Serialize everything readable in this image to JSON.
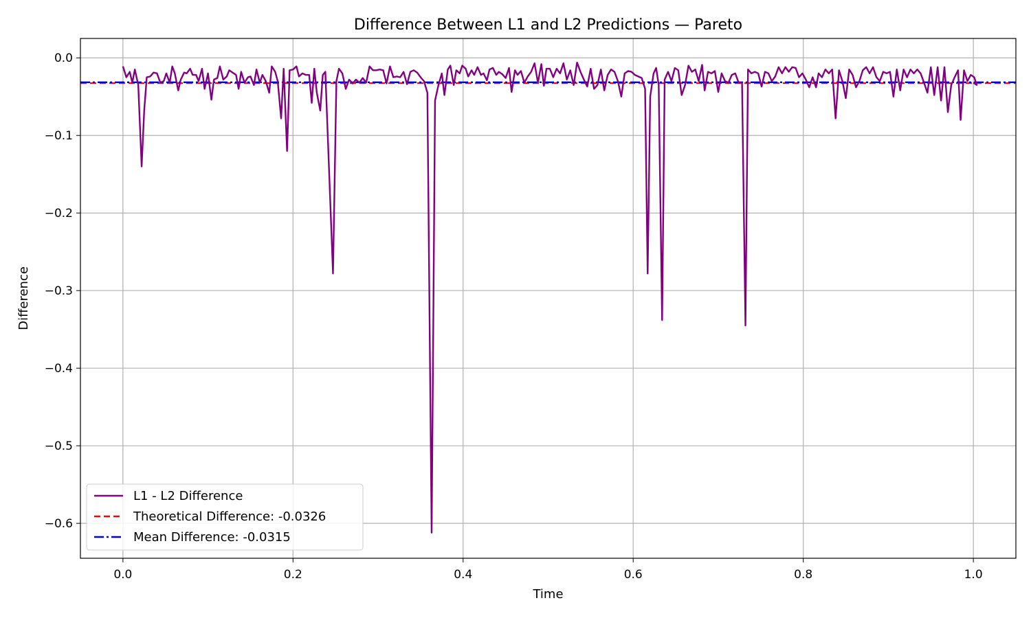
{
  "chart_data": {
    "type": "line",
    "title": "Difference Between L1 and L2 Predictions — Pareto",
    "xlabel": "Time",
    "ylabel": "Difference",
    "xlim": [
      -0.05,
      1.05
    ],
    "ylim": [
      -0.645,
      0.025
    ],
    "x_ticks": [
      0.0,
      0.2,
      0.4,
      0.6,
      0.8,
      1.0
    ],
    "x_tick_labels": [
      "0.0",
      "0.2",
      "0.4",
      "0.6",
      "0.8",
      "1.0"
    ],
    "y_ticks": [
      0.0,
      -0.1,
      -0.2,
      -0.3,
      -0.4,
      -0.5,
      -0.6
    ],
    "y_tick_labels": [
      "0.0",
      "−0.1",
      "−0.2",
      "−0.3",
      "−0.4",
      "−0.5",
      "−0.6"
    ],
    "grid": true,
    "legend_position": "lower-left",
    "series": [
      {
        "name": "L1 - L2 Difference",
        "color": "#800080",
        "style": "solid",
        "points": [
          [
            0.0,
            -0.011
          ],
          [
            0.004,
            -0.025
          ],
          [
            0.008,
            -0.018
          ],
          [
            0.011,
            -0.032
          ],
          [
            0.014,
            -0.015
          ],
          [
            0.018,
            -0.035
          ],
          [
            0.022,
            -0.14
          ],
          [
            0.025,
            -0.068
          ],
          [
            0.028,
            -0.025
          ],
          [
            0.032,
            -0.024
          ],
          [
            0.036,
            -0.019
          ],
          [
            0.04,
            -0.02
          ],
          [
            0.044,
            -0.032
          ],
          [
            0.048,
            -0.03
          ],
          [
            0.051,
            -0.02
          ],
          [
            0.055,
            -0.032
          ],
          [
            0.058,
            -0.011
          ],
          [
            0.061,
            -0.02
          ],
          [
            0.065,
            -0.042
          ],
          [
            0.068,
            -0.028
          ],
          [
            0.072,
            -0.019
          ],
          [
            0.075,
            -0.02
          ],
          [
            0.079,
            -0.014
          ],
          [
            0.082,
            -0.022
          ],
          [
            0.086,
            -0.022
          ],
          [
            0.089,
            -0.03
          ],
          [
            0.093,
            -0.014
          ],
          [
            0.096,
            -0.04
          ],
          [
            0.1,
            -0.02
          ],
          [
            0.104,
            -0.054
          ],
          [
            0.107,
            -0.028
          ],
          [
            0.111,
            -0.026
          ],
          [
            0.114,
            -0.011
          ],
          [
            0.118,
            -0.028
          ],
          [
            0.122,
            -0.024
          ],
          [
            0.125,
            -0.016
          ],
          [
            0.129,
            -0.019
          ],
          [
            0.133,
            -0.022
          ],
          [
            0.136,
            -0.04
          ],
          [
            0.139,
            -0.018
          ],
          [
            0.143,
            -0.032
          ],
          [
            0.147,
            -0.025
          ],
          [
            0.15,
            -0.024
          ],
          [
            0.154,
            -0.035
          ],
          [
            0.157,
            -0.015
          ],
          [
            0.161,
            -0.032
          ],
          [
            0.164,
            -0.022
          ],
          [
            0.168,
            -0.03
          ],
          [
            0.172,
            -0.045
          ],
          [
            0.175,
            -0.011
          ],
          [
            0.179,
            -0.018
          ],
          [
            0.182,
            -0.03
          ],
          [
            0.186,
            -0.078
          ],
          [
            0.189,
            -0.014
          ],
          [
            0.193,
            -0.12
          ],
          [
            0.196,
            -0.016
          ],
          [
            0.2,
            -0.015
          ],
          [
            0.204,
            -0.011
          ],
          [
            0.207,
            -0.024
          ],
          [
            0.211,
            -0.02
          ],
          [
            0.215,
            -0.022
          ],
          [
            0.219,
            -0.022
          ],
          [
            0.222,
            -0.058
          ],
          [
            0.225,
            -0.014
          ],
          [
            0.228,
            -0.045
          ],
          [
            0.232,
            -0.068
          ],
          [
            0.235,
            -0.022
          ],
          [
            0.238,
            -0.018
          ],
          [
            0.247,
            -0.278
          ],
          [
            0.251,
            -0.03
          ],
          [
            0.254,
            -0.014
          ],
          [
            0.258,
            -0.02
          ],
          [
            0.262,
            -0.04
          ],
          [
            0.266,
            -0.028
          ],
          [
            0.27,
            -0.033
          ],
          [
            0.274,
            -0.028
          ],
          [
            0.278,
            -0.032
          ],
          [
            0.282,
            -0.026
          ],
          [
            0.286,
            -0.032
          ],
          [
            0.29,
            -0.011
          ],
          [
            0.294,
            -0.016
          ],
          [
            0.298,
            -0.016
          ],
          [
            0.302,
            -0.015
          ],
          [
            0.306,
            -0.016
          ],
          [
            0.31,
            -0.033
          ],
          [
            0.314,
            -0.011
          ],
          [
            0.318,
            -0.025
          ],
          [
            0.322,
            -0.024
          ],
          [
            0.326,
            -0.025
          ],
          [
            0.33,
            -0.018
          ],
          [
            0.334,
            -0.034
          ],
          [
            0.338,
            -0.018
          ],
          [
            0.342,
            -0.016
          ],
          [
            0.346,
            -0.019
          ],
          [
            0.35,
            -0.025
          ],
          [
            0.354,
            -0.03
          ],
          [
            0.358,
            -0.045
          ],
          [
            0.363,
            -0.612
          ],
          [
            0.367,
            -0.055
          ],
          [
            0.371,
            -0.035
          ],
          [
            0.375,
            -0.02
          ],
          [
            0.378,
            -0.048
          ],
          [
            0.382,
            -0.015
          ],
          [
            0.385,
            -0.01
          ],
          [
            0.389,
            -0.035
          ],
          [
            0.392,
            -0.016
          ],
          [
            0.396,
            -0.02
          ],
          [
            0.399,
            -0.01
          ],
          [
            0.403,
            -0.014
          ],
          [
            0.406,
            -0.024
          ],
          [
            0.41,
            -0.016
          ],
          [
            0.413,
            -0.022
          ],
          [
            0.417,
            -0.012
          ],
          [
            0.421,
            -0.022
          ],
          [
            0.424,
            -0.02
          ],
          [
            0.428,
            -0.029
          ],
          [
            0.431,
            -0.015
          ],
          [
            0.435,
            -0.013
          ],
          [
            0.439,
            -0.022
          ],
          [
            0.442,
            -0.018
          ],
          [
            0.446,
            -0.021
          ],
          [
            0.45,
            -0.026
          ],
          [
            0.454,
            -0.013
          ],
          [
            0.457,
            -0.044
          ],
          [
            0.461,
            -0.016
          ],
          [
            0.464,
            -0.022
          ],
          [
            0.468,
            -0.017
          ],
          [
            0.472,
            -0.032
          ],
          [
            0.476,
            -0.024
          ],
          [
            0.48,
            -0.018
          ],
          [
            0.484,
            -0.007
          ],
          [
            0.488,
            -0.032
          ],
          [
            0.492,
            -0.008
          ],
          [
            0.495,
            -0.036
          ],
          [
            0.498,
            -0.014
          ],
          [
            0.502,
            -0.014
          ],
          [
            0.506,
            -0.025
          ],
          [
            0.51,
            -0.014
          ],
          [
            0.514,
            -0.02
          ],
          [
            0.518,
            -0.007
          ],
          [
            0.522,
            -0.028
          ],
          [
            0.526,
            -0.016
          ],
          [
            0.53,
            -0.035
          ],
          [
            0.534,
            -0.006
          ],
          [
            0.538,
            -0.018
          ],
          [
            0.542,
            -0.028
          ],
          [
            0.546,
            -0.037
          ],
          [
            0.55,
            -0.014
          ],
          [
            0.554,
            -0.04
          ],
          [
            0.558,
            -0.035
          ],
          [
            0.562,
            -0.015
          ],
          [
            0.566,
            -0.042
          ],
          [
            0.57,
            -0.022
          ],
          [
            0.574,
            -0.015
          ],
          [
            0.578,
            -0.018
          ],
          [
            0.582,
            -0.03
          ],
          [
            0.586,
            -0.05
          ],
          [
            0.59,
            -0.02
          ],
          [
            0.594,
            -0.017
          ],
          [
            0.598,
            -0.018
          ],
          [
            0.602,
            -0.022
          ],
          [
            0.606,
            -0.024
          ],
          [
            0.61,
            -0.026
          ],
          [
            0.614,
            -0.04
          ],
          [
            0.617,
            -0.278
          ],
          [
            0.62,
            -0.05
          ],
          [
            0.624,
            -0.02
          ],
          [
            0.627,
            -0.013
          ],
          [
            0.63,
            -0.035
          ],
          [
            0.634,
            -0.338
          ],
          [
            0.637,
            -0.028
          ],
          [
            0.641,
            -0.018
          ],
          [
            0.645,
            -0.03
          ],
          [
            0.649,
            -0.013
          ],
          [
            0.653,
            -0.016
          ],
          [
            0.657,
            -0.048
          ],
          [
            0.661,
            -0.035
          ],
          [
            0.665,
            -0.01
          ],
          [
            0.669,
            -0.018
          ],
          [
            0.673,
            -0.015
          ],
          [
            0.677,
            -0.03
          ],
          [
            0.681,
            -0.009
          ],
          [
            0.684,
            -0.042
          ],
          [
            0.688,
            -0.018
          ],
          [
            0.692,
            -0.02
          ],
          [
            0.696,
            -0.017
          ],
          [
            0.7,
            -0.044
          ],
          [
            0.704,
            -0.02
          ],
          [
            0.708,
            -0.03
          ],
          [
            0.712,
            -0.032
          ],
          [
            0.716,
            -0.022
          ],
          [
            0.72,
            -0.02
          ],
          [
            0.724,
            -0.032
          ],
          [
            0.728,
            -0.032
          ],
          [
            0.732,
            -0.345
          ],
          [
            0.735,
            -0.015
          ],
          [
            0.739,
            -0.02
          ],
          [
            0.743,
            -0.018
          ],
          [
            0.747,
            -0.02
          ],
          [
            0.751,
            -0.037
          ],
          [
            0.755,
            -0.018
          ],
          [
            0.759,
            -0.02
          ],
          [
            0.763,
            -0.03
          ],
          [
            0.767,
            -0.024
          ],
          [
            0.771,
            -0.012
          ],
          [
            0.775,
            -0.02
          ],
          [
            0.779,
            -0.012
          ],
          [
            0.783,
            -0.018
          ],
          [
            0.787,
            -0.012
          ],
          [
            0.791,
            -0.013
          ],
          [
            0.795,
            -0.025
          ],
          [
            0.799,
            -0.02
          ],
          [
            0.803,
            -0.028
          ],
          [
            0.807,
            -0.038
          ],
          [
            0.811,
            -0.025
          ],
          [
            0.815,
            -0.038
          ],
          [
            0.818,
            -0.02
          ],
          [
            0.822,
            -0.025
          ],
          [
            0.826,
            -0.015
          ],
          [
            0.83,
            -0.02
          ],
          [
            0.834,
            -0.015
          ],
          [
            0.838,
            -0.078
          ],
          [
            0.842,
            -0.016
          ],
          [
            0.846,
            -0.03
          ],
          [
            0.85,
            -0.052
          ],
          [
            0.854,
            -0.015
          ],
          [
            0.858,
            -0.022
          ],
          [
            0.862,
            -0.038
          ],
          [
            0.866,
            -0.03
          ],
          [
            0.87,
            -0.016
          ],
          [
            0.874,
            -0.012
          ],
          [
            0.878,
            -0.02
          ],
          [
            0.882,
            -0.012
          ],
          [
            0.886,
            -0.025
          ],
          [
            0.89,
            -0.03
          ],
          [
            0.894,
            -0.018
          ],
          [
            0.898,
            -0.02
          ],
          [
            0.902,
            -0.018
          ],
          [
            0.906,
            -0.05
          ],
          [
            0.91,
            -0.015
          ],
          [
            0.914,
            -0.042
          ],
          [
            0.918,
            -0.015
          ],
          [
            0.922,
            -0.025
          ],
          [
            0.926,
            -0.015
          ],
          [
            0.93,
            -0.02
          ],
          [
            0.934,
            -0.015
          ],
          [
            0.938,
            -0.02
          ],
          [
            0.942,
            -0.032
          ],
          [
            0.946,
            -0.045
          ],
          [
            0.95,
            -0.012
          ],
          [
            0.954,
            -0.048
          ],
          [
            0.958,
            -0.012
          ],
          [
            0.962,
            -0.055
          ],
          [
            0.966,
            -0.012
          ],
          [
            0.97,
            -0.07
          ],
          [
            0.974,
            -0.035
          ],
          [
            0.978,
            -0.025
          ],
          [
            0.982,
            -0.016
          ],
          [
            0.985,
            -0.08
          ],
          [
            0.989,
            -0.016
          ],
          [
            0.993,
            -0.03
          ],
          [
            0.997,
            -0.022
          ],
          [
            1.001,
            -0.025
          ],
          [
            1.004,
            -0.035
          ],
          [
            1.0,
            -0.032
          ]
        ]
      },
      {
        "name": "Theoretical Difference: -0.0326",
        "color": "#ff0000",
        "style": "dashed",
        "value": -0.0326
      },
      {
        "name": "Mean Difference: -0.0315",
        "color": "#0000dd",
        "style": "dashdot",
        "value": -0.0315
      }
    ]
  }
}
